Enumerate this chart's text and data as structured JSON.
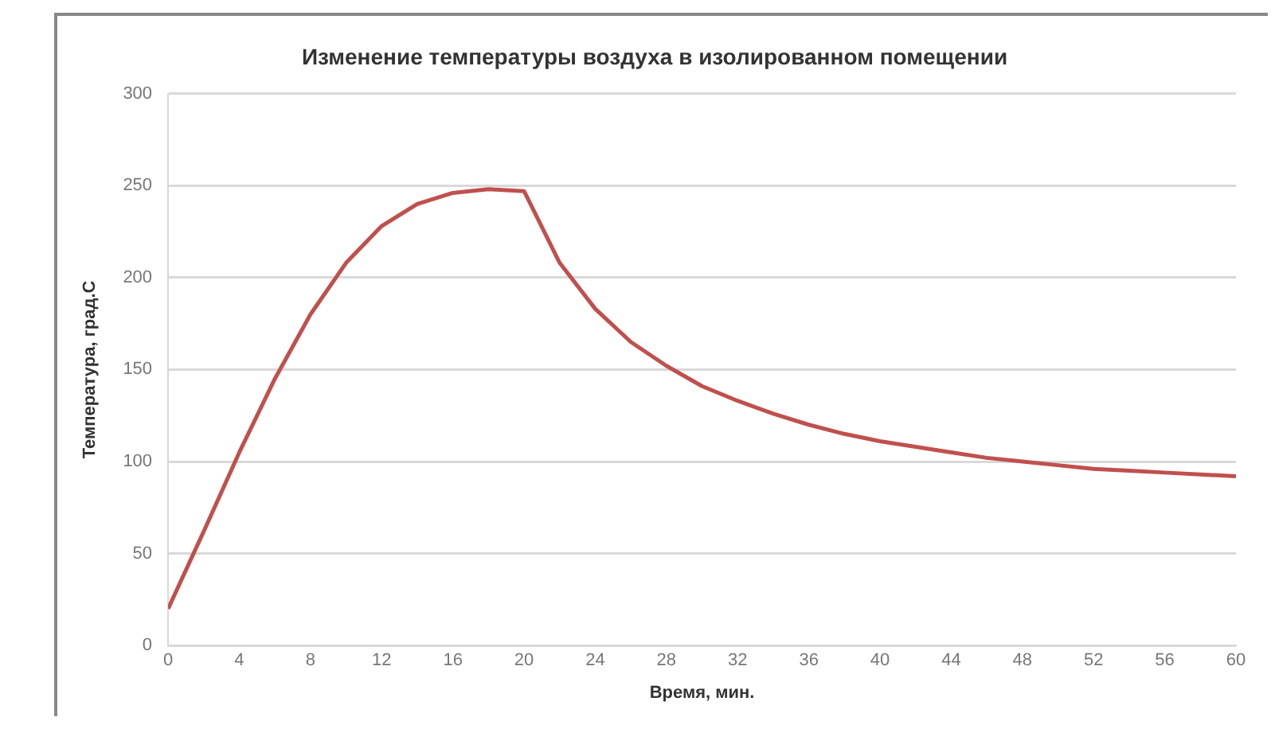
{
  "chart_data": {
    "type": "line",
    "title": "Изменение температуры воздуха в изолированном помещении",
    "xlabel": "Время, мин.",
    "ylabel": "Температура, град.С",
    "x": [
      0,
      2,
      4,
      6,
      8,
      10,
      12,
      14,
      16,
      18,
      20,
      22,
      24,
      26,
      28,
      30,
      32,
      34,
      36,
      38,
      40,
      42,
      44,
      46,
      48,
      50,
      52,
      54,
      56,
      58,
      60
    ],
    "series": [
      {
        "color": "#c0504d",
        "values": [
          20,
          62,
          105,
          145,
          180,
          208,
          228,
          240,
          246,
          248,
          247,
          208,
          183,
          165,
          152,
          141,
          133,
          126,
          120,
          115,
          111,
          108,
          105,
          102,
          100,
          98,
          96,
          95,
          94,
          93,
          92
        ]
      }
    ],
    "xlim": [
      0,
      60
    ],
    "xticks": [
      0,
      4,
      8,
      12,
      16,
      20,
      24,
      28,
      32,
      36,
      40,
      44,
      48,
      52,
      56,
      60
    ],
    "ylim": [
      0,
      300
    ],
    "yticks": [
      0,
      50,
      100,
      150,
      200,
      250,
      300
    ],
    "grid": "y",
    "legend": false,
    "marker": "none",
    "line_style": "solid"
  }
}
